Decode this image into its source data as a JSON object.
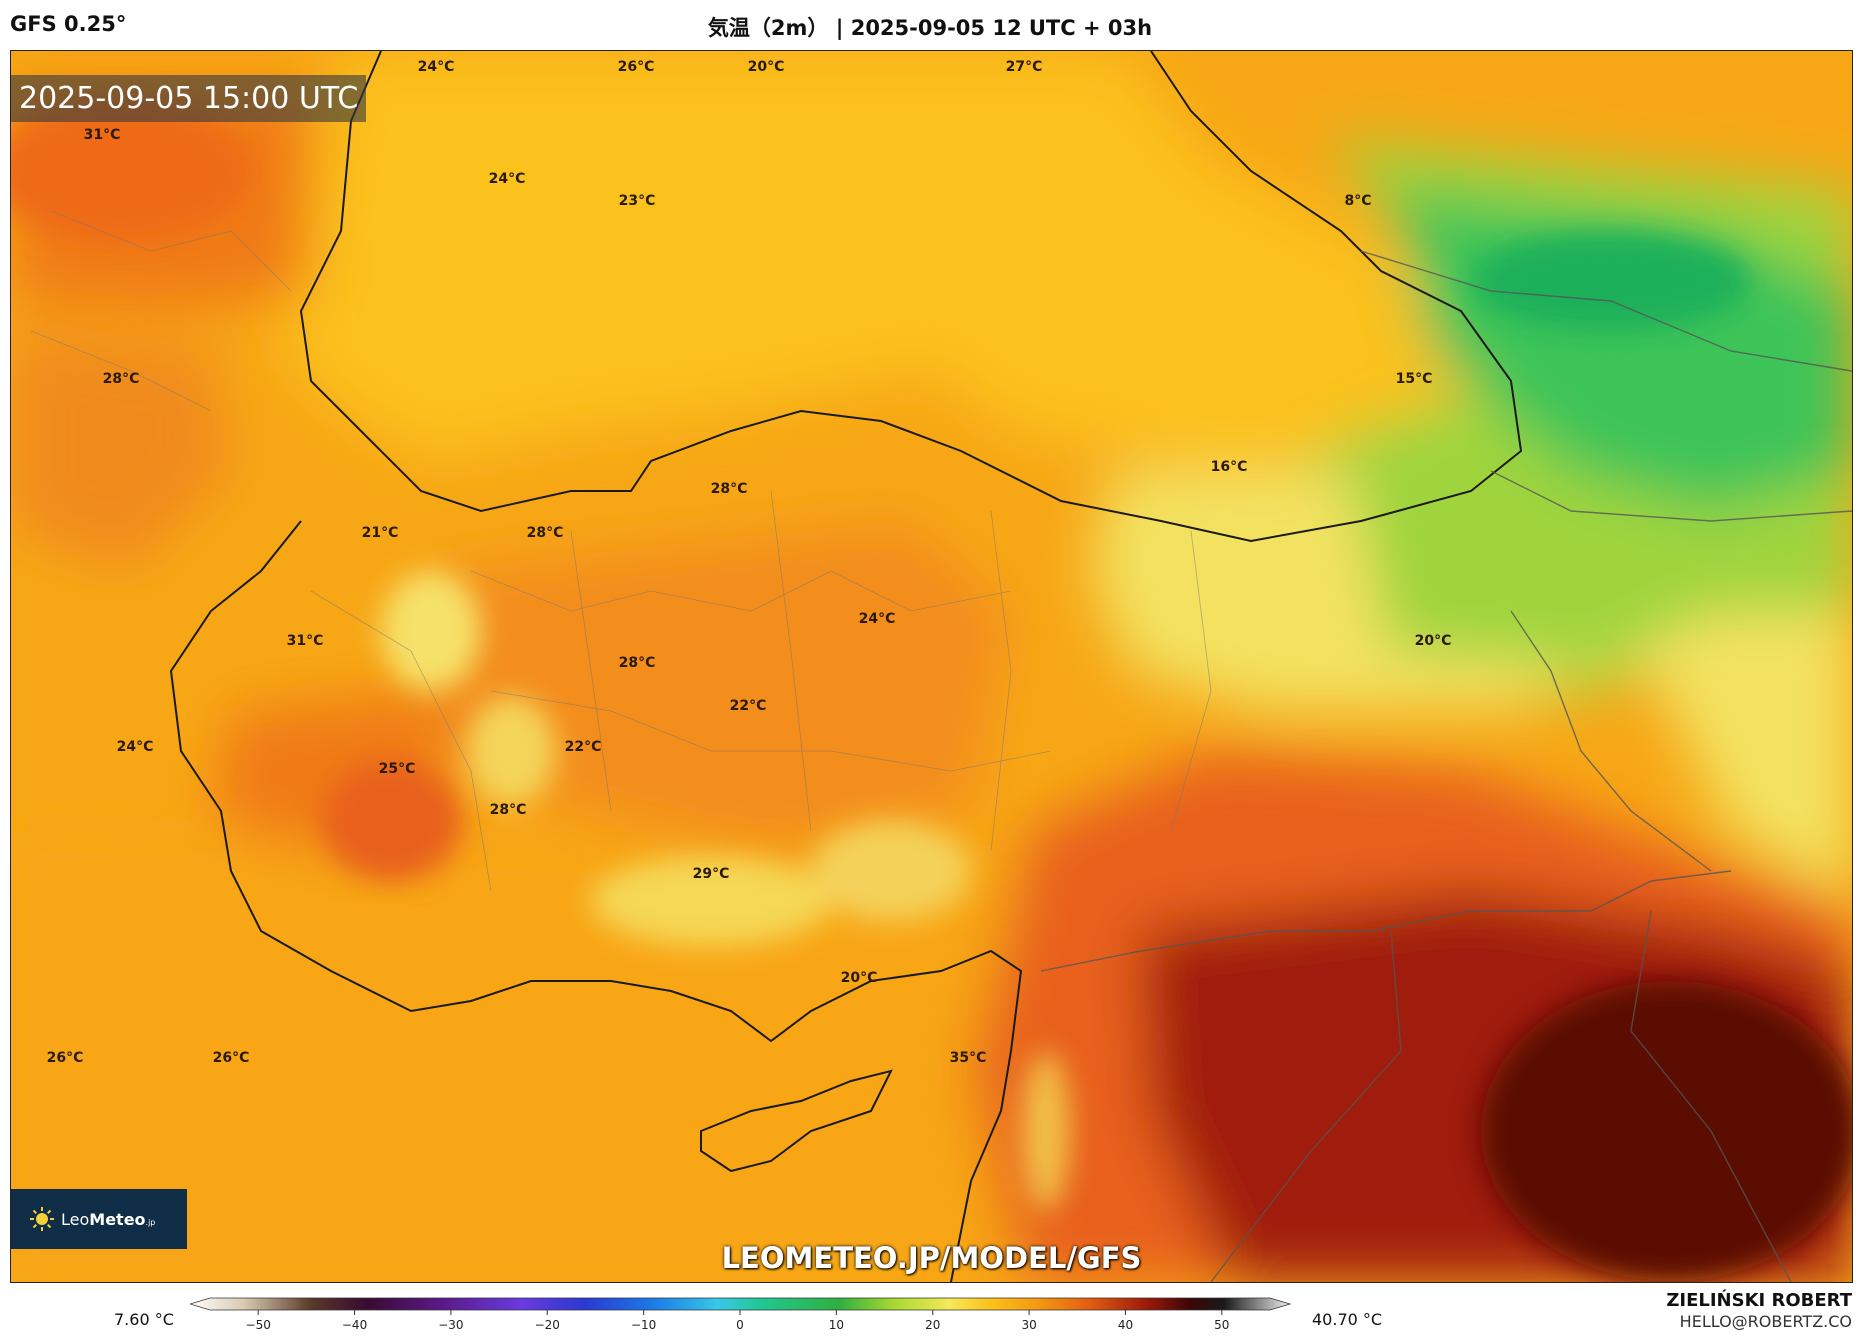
{
  "header": {
    "model": "GFS 0.25°",
    "title": "気温（2m） | 2025-09-05 12 UTC + 03h"
  },
  "map": {
    "valid_time": "2025-09-05 15:00 UTC",
    "watermark": "LEOMETEO.JP/MODEL/GFS",
    "logo": {
      "name_light": "Leo",
      "name_bold": "Meteo",
      "suffix": ".jp"
    },
    "temperature_labels": [
      "24°C",
      "26°C",
      "20°C",
      "27°C",
      "31°C",
      "24°C",
      "23°C",
      "8°C",
      "28°C",
      "15°C",
      "16°C",
      "28°C",
      "21°C",
      "28°C",
      "24°C",
      "20°C",
      "31°C",
      "28°C",
      "22°C",
      "24°C",
      "25°C",
      "22°C",
      "28°C",
      "29°C",
      "20°C",
      "26°C",
      "26°C",
      "35°C"
    ],
    "colors": {
      "cold_green": "#2fc05a",
      "light_green": "#9ad43c",
      "yellow": "#f6e85a",
      "gold": "#fbbf18",
      "orange": "#f59a12",
      "deep_orange": "#ee6a12",
      "red": "#cc3a10",
      "dark_red": "#8a1408",
      "maroon": "#520a06"
    }
  },
  "colorbar": {
    "min_label": "7.60 °C",
    "max_label": "40.70 °C",
    "ticks": [
      "−50",
      "−40",
      "−30",
      "−20",
      "−10",
      "0",
      "10",
      "20",
      "30",
      "40",
      "50"
    ],
    "tick_values": [
      -50,
      -40,
      -30,
      -20,
      -10,
      0,
      10,
      20,
      30,
      40,
      50
    ],
    "range": [
      -55,
      55
    ]
  },
  "credit": {
    "name": "ZIELIŃSKI ROBERT",
    "email": "HELLO@ROBERTZ.CO"
  }
}
